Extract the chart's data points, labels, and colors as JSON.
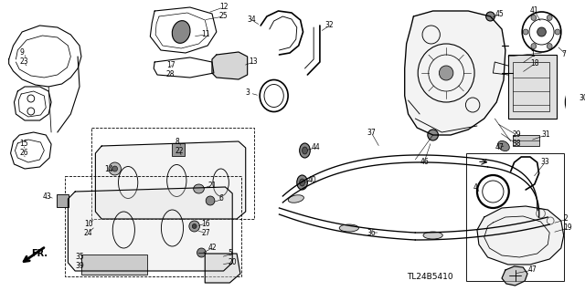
{
  "bg_color": "#ffffff",
  "fig_width": 6.4,
  "fig_height": 3.19,
  "dpi": 100,
  "diagram_code": "TL24B5410"
}
